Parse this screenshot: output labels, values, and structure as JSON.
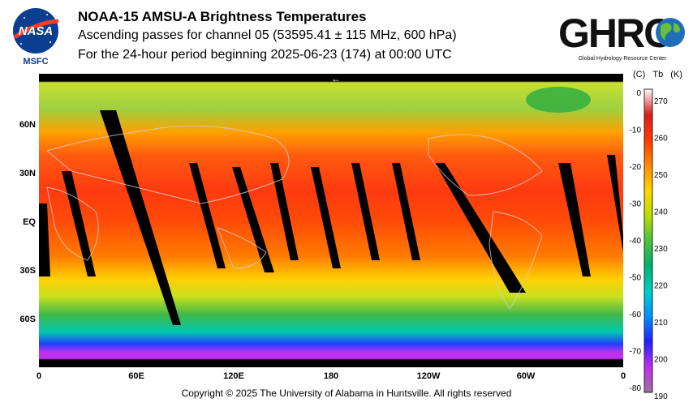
{
  "nasa": {
    "logo_text": "NASA",
    "caption": "MSFC"
  },
  "title": {
    "line1": "NOAA-15 AMSU-A Brightness Temperatures",
    "line2": "Ascending passes for channel 05 (53595.41 ± 115 MHz, 600 hPa)",
    "line3": "For the 24-hour period beginning 2025-06-23 (174) at 00:00 UTC"
  },
  "ghrc": {
    "logo_text": "GHRC",
    "caption": "Global Hydrology Resource Center"
  },
  "map": {
    "lat_labels": [
      "60N",
      "30N",
      "EQ",
      "30S",
      "60S"
    ],
    "lon_labels": [
      "0",
      "60E",
      "120E",
      "180",
      "120W",
      "60W",
      "0"
    ],
    "dateline_marker": "←"
  },
  "colorbar": {
    "header_c": "(C)",
    "header_tb": "Tb",
    "header_k": "(K)",
    "celsius_ticks": [
      "0",
      "-10",
      "-20",
      "-30",
      "-40",
      "-50",
      "-60",
      "-70",
      "-80"
    ],
    "kelvin_ticks": [
      "270",
      "260",
      "250",
      "240",
      "230",
      "220",
      "210",
      "200",
      "190"
    ],
    "colors": [
      "#ffffff",
      "#d81e1e",
      "#ff3a00",
      "#ff8a00",
      "#ffd400",
      "#b8e000",
      "#4cc040",
      "#00b070",
      "#00d0c8",
      "#0090ff",
      "#2020ff",
      "#c030f0",
      "#a070a0"
    ]
  },
  "copyright": "Copyright © 2025 The University of Alabama in Huntsville.  All rights reserved"
}
